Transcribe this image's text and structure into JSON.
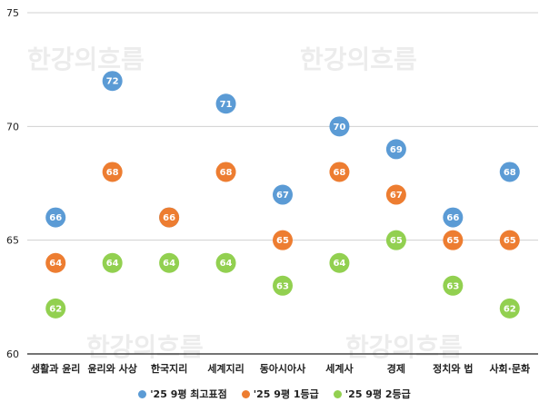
{
  "watermark": "한강의흐름",
  "chart_data": {
    "type": "scatter",
    "categories": [
      "생활과 윤리",
      "윤리와 사상",
      "한국지리",
      "세계지리",
      "동아시아사",
      "세계사",
      "경제",
      "정치와 법",
      "사회·문화"
    ],
    "ylim": [
      60,
      75
    ],
    "yticks": [
      60,
      65,
      70,
      75
    ],
    "grid": true,
    "legend_position": "bottom",
    "series": [
      {
        "name": "'25 9평 최고표점",
        "color": "#5b9bd5",
        "values": [
          66,
          72,
          66,
          71,
          67,
          70,
          69,
          66,
          68
        ]
      },
      {
        "name": "'25 9평 1등급",
        "color": "#ed7d31",
        "values": [
          64,
          68,
          66,
          68,
          65,
          68,
          67,
          65,
          65
        ]
      },
      {
        "name": "'25 9평 2등급",
        "color": "#92d050",
        "values": [
          62,
          64,
          64,
          64,
          63,
          64,
          65,
          63,
          62
        ]
      }
    ]
  }
}
